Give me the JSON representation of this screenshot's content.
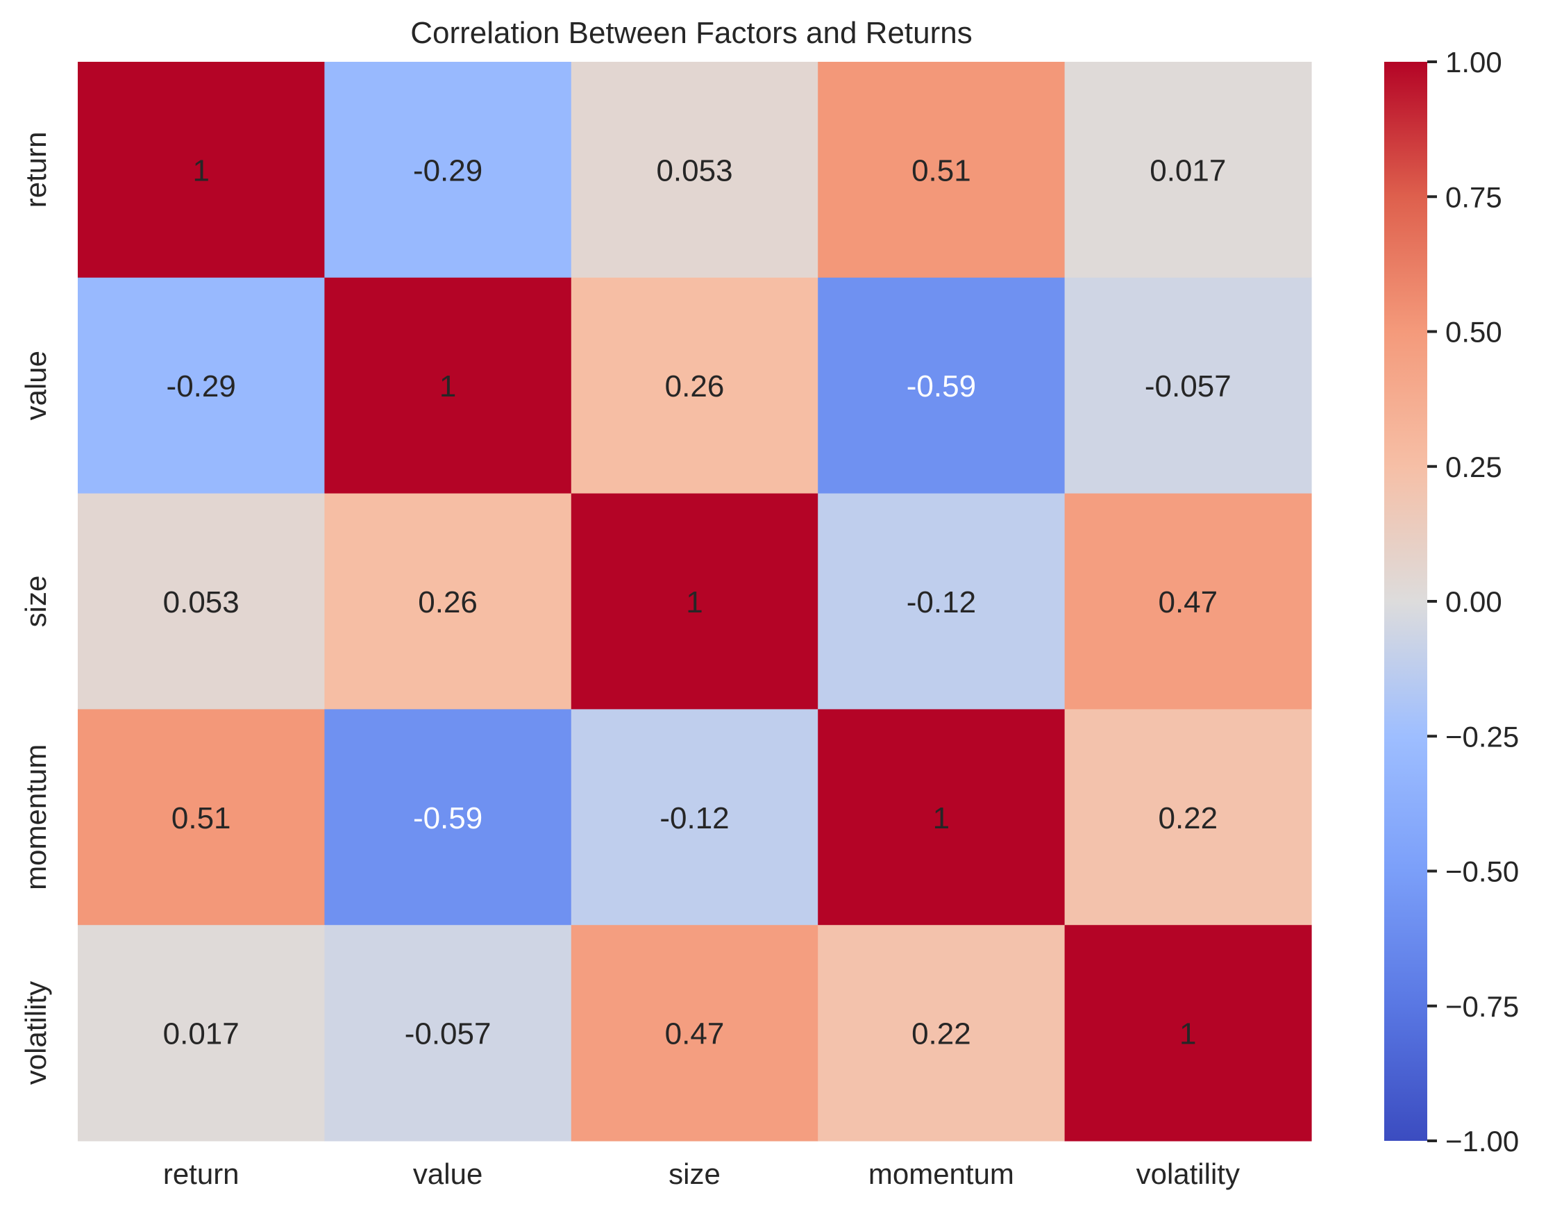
{
  "chart_data": {
    "type": "heatmap",
    "title": "Correlation Between Factors and Returns",
    "xlabel": "",
    "ylabel": "",
    "x_categories": [
      "return",
      "value",
      "size",
      "momentum",
      "volatility"
    ],
    "y_categories": [
      "return",
      "value",
      "size",
      "momentum",
      "volatility"
    ],
    "matrix": [
      [
        1,
        -0.29,
        0.053,
        0.51,
        0.017
      ],
      [
        -0.29,
        1,
        0.26,
        -0.59,
        -0.057
      ],
      [
        0.053,
        0.26,
        1,
        -0.12,
        0.47
      ],
      [
        0.51,
        -0.59,
        -0.12,
        1,
        0.22
      ],
      [
        0.017,
        -0.057,
        0.47,
        0.22,
        1
      ]
    ],
    "cell_labels": [
      [
        "1",
        "-0.29",
        "0.053",
        "0.51",
        "0.017"
      ],
      [
        "-0.29",
        "1",
        "0.26",
        "-0.59",
        "-0.057"
      ],
      [
        "0.053",
        "0.26",
        "1",
        "-0.12",
        "0.47"
      ],
      [
        "0.51",
        "-0.59",
        "-0.12",
        "1",
        "0.22"
      ],
      [
        "0.017",
        "-0.057",
        "0.47",
        "0.22",
        "1"
      ]
    ],
    "colorscale": "coolwarm",
    "vmin": -1,
    "vmax": 1,
    "colorbar": {
      "ticks": [
        1,
        0.75,
        0.5,
        0.25,
        0,
        -0.25,
        -0.5,
        -0.75,
        -1
      ],
      "tick_labels": [
        "1.00",
        "0.75",
        "0.50",
        "0.25",
        "0.00",
        "−0.25",
        "−0.50",
        "−0.75",
        "−1.00"
      ],
      "placement": "right"
    },
    "grid": false
  }
}
